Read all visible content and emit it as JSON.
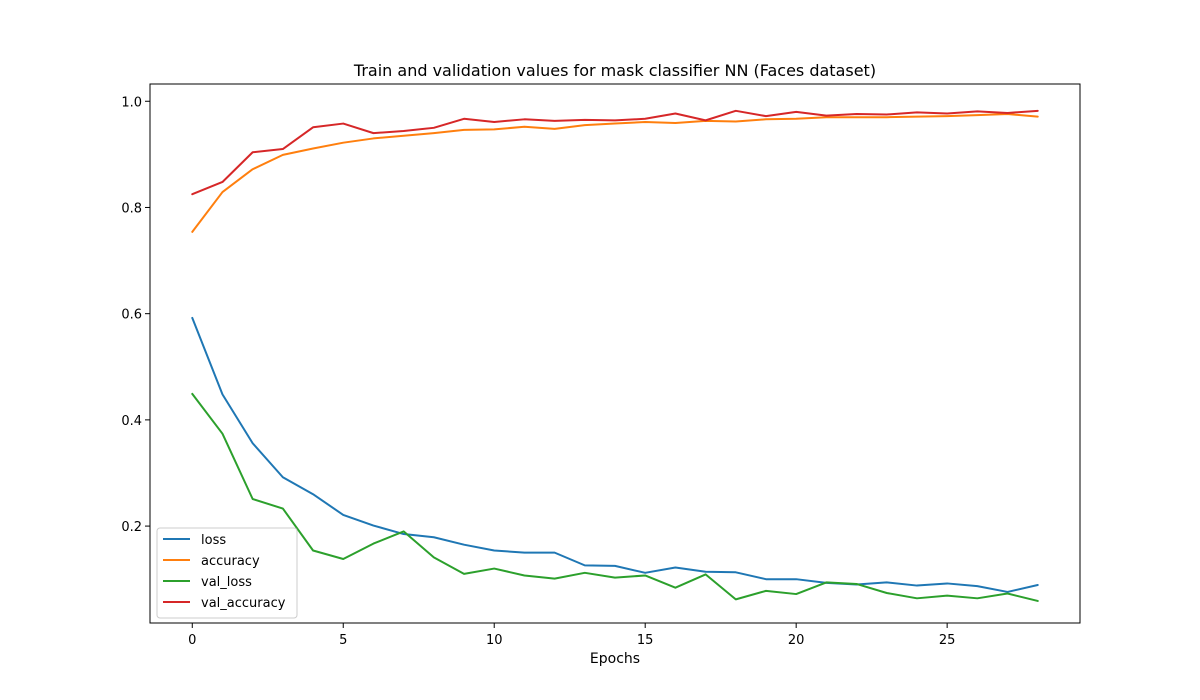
{
  "chart_data": {
    "type": "line",
    "title": "Train and validation values for mask classifier NN (Faces dataset)",
    "xlabel": "Epochs",
    "ylabel": "",
    "xlim": [
      -1.4,
      29.4
    ],
    "ylim": [
      0.0175,
      1.0325
    ],
    "xticks": [
      0,
      5,
      10,
      15,
      20,
      25
    ],
    "xtick_labels": [
      "0",
      "5",
      "10",
      "15",
      "20",
      "25"
    ],
    "yticks": [
      0.2,
      0.4,
      0.6,
      0.8,
      1.0
    ],
    "ytick_labels": [
      "0.2",
      "0.4",
      "0.6",
      "0.8",
      "1.0"
    ],
    "grid": false,
    "legend_position": "lower-left",
    "x": [
      0,
      1,
      2,
      3,
      4,
      5,
      6,
      7,
      8,
      9,
      10,
      11,
      12,
      13,
      14,
      15,
      16,
      17,
      18,
      19,
      20,
      21,
      22,
      23,
      24,
      25,
      26,
      27,
      28
    ],
    "series": [
      {
        "name": "loss",
        "color": "#1f77b4",
        "values": [
          0.592,
          0.448,
          0.356,
          0.292,
          0.26,
          0.221,
          0.201,
          0.185,
          0.179,
          0.165,
          0.154,
          0.15,
          0.15,
          0.126,
          0.125,
          0.112,
          0.122,
          0.114,
          0.113,
          0.1,
          0.1,
          0.093,
          0.09,
          0.094,
          0.088,
          0.092,
          0.087,
          0.076,
          0.089
        ]
      },
      {
        "name": "accuracy",
        "color": "#ff7f0e",
        "values": [
          0.754,
          0.829,
          0.872,
          0.899,
          0.911,
          0.922,
          0.93,
          0.935,
          0.94,
          0.946,
          0.947,
          0.952,
          0.948,
          0.955,
          0.958,
          0.961,
          0.959,
          0.963,
          0.962,
          0.966,
          0.967,
          0.97,
          0.97,
          0.97,
          0.971,
          0.972,
          0.974,
          0.976,
          0.971
        ]
      },
      {
        "name": "val_loss",
        "color": "#2ca02c",
        "values": [
          0.449,
          0.374,
          0.251,
          0.233,
          0.154,
          0.138,
          0.167,
          0.19,
          0.141,
          0.11,
          0.12,
          0.107,
          0.101,
          0.112,
          0.103,
          0.107,
          0.084,
          0.109,
          0.062,
          0.078,
          0.072,
          0.094,
          0.091,
          0.074,
          0.064,
          0.069,
          0.064,
          0.073,
          0.059
        ]
      },
      {
        "name": "val_accuracy",
        "color": "#d62728",
        "values": [
          0.825,
          0.848,
          0.904,
          0.91,
          0.951,
          0.958,
          0.94,
          0.944,
          0.95,
          0.967,
          0.961,
          0.966,
          0.963,
          0.965,
          0.964,
          0.967,
          0.977,
          0.964,
          0.982,
          0.972,
          0.98,
          0.973,
          0.976,
          0.975,
          0.979,
          0.977,
          0.981,
          0.978,
          0.982
        ]
      }
    ]
  }
}
